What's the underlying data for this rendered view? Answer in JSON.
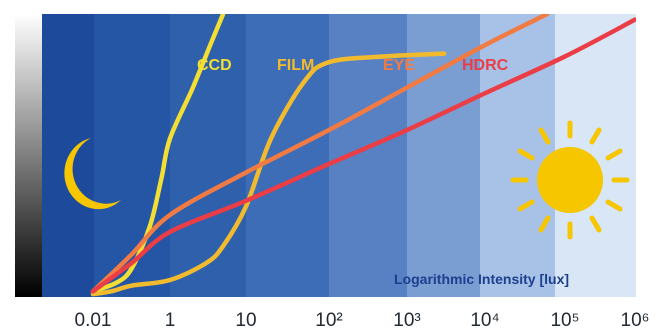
{
  "chart_data": {
    "type": "line",
    "xlabel": "Logarithmic Intensity [lux]",
    "x_scale": "log",
    "xlim": [
      0.01,
      1000000
    ],
    "x_ticks": [
      "0.01",
      "1",
      "10",
      "10²",
      "10³",
      "10⁴",
      "10⁵",
      "10⁶"
    ],
    "colors": {
      "ccd": "#f3df33",
      "film": "#f2bb2d",
      "eye": "#f27a43",
      "hdrc": "#eb3d46",
      "symbols": "#f6c600",
      "axis_label": "#1d3f8f",
      "tick_text": "#232a33"
    },
    "band_colors": [
      "#1d4a9a",
      "#2556a6",
      "#2e60ac",
      "#3c6db6",
      "#5781c2",
      "#7a9dd2",
      "#a8c1e6",
      "#d8e6f6",
      "#ffffff"
    ],
    "series": [
      {
        "name": "CCD",
        "key": "ccd",
        "points": [
          [
            0.01,
            0.02
          ],
          [
            0.04,
            0.05
          ],
          [
            0.1,
            0.1
          ],
          [
            0.3,
            0.25
          ],
          [
            0.6,
            0.42
          ],
          [
            1,
            0.56
          ],
          [
            2,
            0.74
          ],
          [
            3.5,
            0.9
          ],
          [
            5,
            1.0
          ]
        ]
      },
      {
        "name": "FILM",
        "key": "film",
        "points": [
          [
            0.01,
            0.01
          ],
          [
            0.03,
            0.02
          ],
          [
            0.1,
            0.04
          ],
          [
            1,
            0.06
          ],
          [
            3,
            0.12
          ],
          [
            5,
            0.18
          ],
          [
            10,
            0.32
          ],
          [
            20,
            0.56
          ],
          [
            50,
            0.76
          ],
          [
            100,
            0.83
          ],
          [
            500,
            0.85
          ],
          [
            3000,
            0.86
          ]
        ]
      },
      {
        "name": "EYE",
        "key": "eye",
        "points": [
          [
            0.01,
            0.02
          ],
          [
            0.1,
            0.15
          ],
          [
            1,
            0.29
          ],
          [
            10,
            0.44
          ],
          [
            100,
            0.59
          ],
          [
            1000,
            0.74
          ],
          [
            10000,
            0.89
          ],
          [
            60000,
            1.0
          ]
        ]
      },
      {
        "name": "HDRC",
        "key": "hdrc",
        "points": [
          [
            0.01,
            0.02
          ],
          [
            0.1,
            0.12
          ],
          [
            1,
            0.23
          ],
          [
            10,
            0.34
          ],
          [
            100,
            0.47
          ],
          [
            1000,
            0.59
          ],
          [
            10000,
            0.72
          ],
          [
            100000,
            0.85
          ],
          [
            1000000,
            0.98
          ]
        ]
      }
    ],
    "symbols": [
      "moon-icon",
      "sun-icon"
    ]
  }
}
